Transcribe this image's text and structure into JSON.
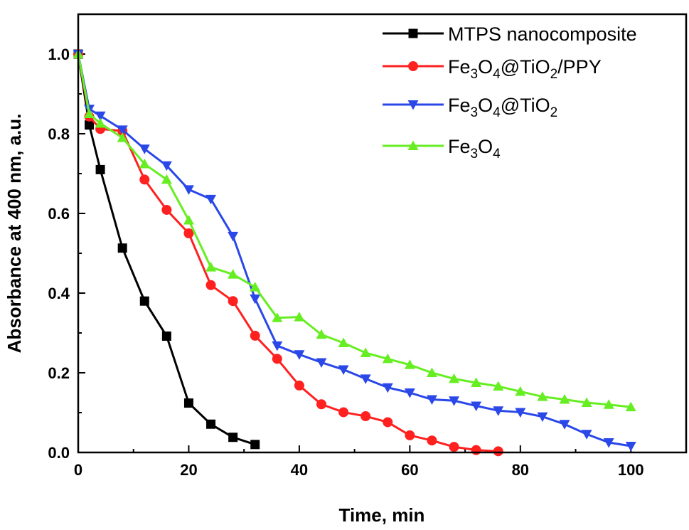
{
  "chart_data": {
    "type": "line",
    "xlabel": "Time, min",
    "ylabel": "Absorbance at 400 nm, a.u.",
    "xlim": [
      0,
      110
    ],
    "ylim": [
      0,
      1.1
    ],
    "x_ticks": [
      0,
      20,
      40,
      60,
      80,
      100
    ],
    "y_ticks": [
      "0.0",
      "0.2",
      "0.4",
      "0.6",
      "0.8",
      "1.0"
    ],
    "legend_position": "top-right",
    "series": [
      {
        "name": "MTPS nanocomposite",
        "label_parts": [
          {
            "t": "MTPS nanocomposite",
            "sub": false
          }
        ],
        "color": "#000000",
        "marker": "square",
        "x": [
          0,
          2,
          4,
          8,
          12,
          16,
          20,
          24,
          28,
          32
        ],
        "y": [
          1.0,
          0.822,
          0.71,
          0.513,
          0.38,
          0.292,
          0.124,
          0.071,
          0.038,
          0.02
        ]
      },
      {
        "name": "Fe3O4@TiO2/PPY",
        "label_parts": [
          {
            "t": "Fe",
            "sub": false
          },
          {
            "t": "3",
            "sub": true
          },
          {
            "t": "O",
            "sub": false
          },
          {
            "t": "4",
            "sub": true
          },
          {
            "t": "@TiO",
            "sub": false
          },
          {
            "t": "2",
            "sub": true
          },
          {
            "t": "/PPY",
            "sub": false
          }
        ],
        "color": "#ff2020",
        "marker": "circle",
        "x": [
          0,
          2,
          4,
          8,
          12,
          16,
          20,
          24,
          28,
          32,
          36,
          40,
          44,
          48,
          52,
          56,
          60,
          64,
          68,
          72,
          76
        ],
        "y": [
          1.0,
          0.843,
          0.812,
          0.807,
          0.685,
          0.609,
          0.55,
          0.42,
          0.38,
          0.293,
          0.235,
          0.168,
          0.121,
          0.101,
          0.091,
          0.076,
          0.043,
          0.03,
          0.014,
          0.006,
          0.003
        ]
      },
      {
        "name": "Fe3O4@TiO2",
        "label_parts": [
          {
            "t": "Fe",
            "sub": false
          },
          {
            "t": "3",
            "sub": true
          },
          {
            "t": "O",
            "sub": false
          },
          {
            "t": "4",
            "sub": true
          },
          {
            "t": "@TiO",
            "sub": false
          },
          {
            "t": "2",
            "sub": true
          }
        ],
        "color": "#2a47e8",
        "marker": "triangle-down",
        "x": [
          0,
          2,
          4,
          8,
          12,
          16,
          20,
          24,
          28,
          32,
          36,
          40,
          44,
          48,
          52,
          56,
          60,
          64,
          68,
          72,
          76,
          80,
          84,
          88,
          92,
          96,
          100
        ],
        "y": [
          1.0,
          0.862,
          0.845,
          0.81,
          0.762,
          0.72,
          0.66,
          0.636,
          0.543,
          0.386,
          0.268,
          0.246,
          0.226,
          0.208,
          0.185,
          0.163,
          0.15,
          0.133,
          0.13,
          0.117,
          0.105,
          0.101,
          0.09,
          0.071,
          0.046,
          0.025,
          0.016
        ]
      },
      {
        "name": "Fe3O4",
        "label_parts": [
          {
            "t": "Fe",
            "sub": false
          },
          {
            "t": "3",
            "sub": true
          },
          {
            "t": "O",
            "sub": false
          },
          {
            "t": "4",
            "sub": true
          }
        ],
        "color": "#66ee22",
        "marker": "triangle-up",
        "x": [
          0,
          2,
          4,
          8,
          12,
          16,
          20,
          24,
          28,
          32,
          36,
          40,
          44,
          48,
          52,
          56,
          60,
          64,
          68,
          72,
          76,
          80,
          84,
          88,
          92,
          96,
          100
        ],
        "y": [
          1.0,
          0.85,
          0.826,
          0.79,
          0.724,
          0.685,
          0.583,
          0.465,
          0.447,
          0.415,
          0.338,
          0.34,
          0.296,
          0.275,
          0.25,
          0.235,
          0.22,
          0.2,
          0.185,
          0.175,
          0.166,
          0.153,
          0.14,
          0.133,
          0.125,
          0.12,
          0.114
        ]
      }
    ]
  }
}
